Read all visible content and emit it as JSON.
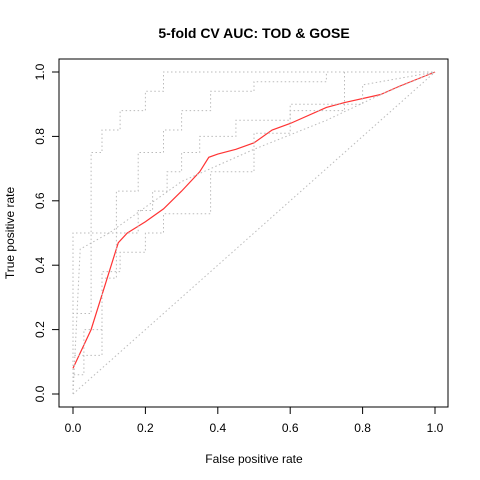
{
  "chart_data": {
    "type": "line",
    "title": "5-fold CV AUC: TOD & GOSE",
    "xlabel": "False positive rate",
    "ylabel": "True positive rate",
    "xlim": [
      0,
      1
    ],
    "ylim": [
      0,
      1
    ],
    "x_ticks": [
      "0.0",
      "0.2",
      "0.4",
      "0.6",
      "0.8",
      "1.0"
    ],
    "y_ticks": [
      "0.0",
      "0.2",
      "0.4",
      "0.6",
      "0.8",
      "1.0"
    ],
    "grid": false,
    "legend": "none",
    "colors": {
      "mean_curve": "#ff3333",
      "fold_curves": "#bbbbbb",
      "diagonal": "#bbbbbb",
      "axes": "#000000"
    },
    "series": [
      {
        "style": "solid-red",
        "x": [
          0.0,
          0.05,
          0.125,
          0.15,
          0.2,
          0.25,
          0.3,
          0.35,
          0.375,
          0.4,
          0.45,
          0.5,
          0.55,
          0.6,
          0.7,
          0.75,
          0.85,
          0.9,
          1.0
        ],
        "y": [
          0.08,
          0.2,
          0.47,
          0.5,
          0.535,
          0.575,
          0.63,
          0.69,
          0.735,
          0.745,
          0.76,
          0.78,
          0.82,
          0.84,
          0.89,
          0.905,
          0.93,
          0.955,
          1.0
        ]
      },
      {
        "style": "dotted-gray",
        "x": [
          0.0,
          0.0,
          0.03,
          0.03,
          0.08,
          0.08,
          0.12,
          0.12,
          0.18,
          0.18,
          0.22,
          0.22,
          0.26,
          0.26,
          0.3,
          0.3,
          0.35,
          0.35,
          0.45,
          0.45,
          0.6,
          0.6,
          0.8,
          0.8,
          1.0
        ],
        "y": [
          0.0,
          0.06,
          0.06,
          0.2,
          0.2,
          0.36,
          0.36,
          0.5,
          0.5,
          0.57,
          0.57,
          0.63,
          0.63,
          0.69,
          0.69,
          0.75,
          0.75,
          0.8,
          0.8,
          0.85,
          0.85,
          0.9,
          0.9,
          0.96,
          1.0
        ]
      },
      {
        "style": "dotted-gray",
        "x": [
          0.0,
          0.0,
          0.05,
          0.05,
          0.12,
          0.12,
          0.18,
          0.18,
          0.25,
          0.25,
          0.3,
          0.3,
          0.38,
          0.38,
          0.5,
          0.5,
          0.7,
          0.7,
          1.0
        ],
        "y": [
          0.0,
          0.25,
          0.25,
          0.5,
          0.5,
          0.63,
          0.63,
          0.75,
          0.75,
          0.82,
          0.82,
          0.88,
          0.88,
          0.94,
          0.94,
          0.97,
          0.97,
          1.0,
          1.0
        ]
      },
      {
        "style": "dotted-gray",
        "x": [
          0.0,
          0.0,
          0.05,
          0.05,
          0.08,
          0.08,
          0.13,
          0.13,
          0.2,
          0.2,
          0.25,
          0.25,
          0.3,
          0.3,
          1.0
        ],
        "y": [
          0.0,
          0.5,
          0.5,
          0.75,
          0.75,
          0.82,
          0.82,
          0.88,
          0.88,
          0.94,
          0.94,
          1.0,
          1.0,
          1.0,
          1.0
        ]
      },
      {
        "style": "dotted-gray",
        "x": [
          0.0,
          0.0,
          0.08,
          0.08,
          0.13,
          0.13,
          0.2,
          0.2,
          0.25,
          0.25,
          0.38,
          0.38,
          0.5,
          0.5,
          0.6,
          0.6,
          0.75,
          0.75,
          1.0
        ],
        "y": [
          0.0,
          0.12,
          0.12,
          0.38,
          0.38,
          0.44,
          0.44,
          0.5,
          0.5,
          0.56,
          0.56,
          0.69,
          0.69,
          0.81,
          0.81,
          0.88,
          0.88,
          1.0,
          1.0
        ]
      },
      {
        "style": "dotted-gray",
        "x": [
          0.0,
          0.02,
          0.1,
          0.2,
          0.3,
          0.5,
          0.7,
          0.85,
          1.0
        ],
        "y": [
          0.0,
          0.45,
          0.5,
          0.58,
          0.66,
          0.76,
          0.85,
          0.93,
          1.0
        ]
      },
      {
        "style": "dotted-gray-diagonal",
        "x": [
          0.0,
          1.0
        ],
        "y": [
          0.0,
          1.0
        ]
      }
    ]
  }
}
